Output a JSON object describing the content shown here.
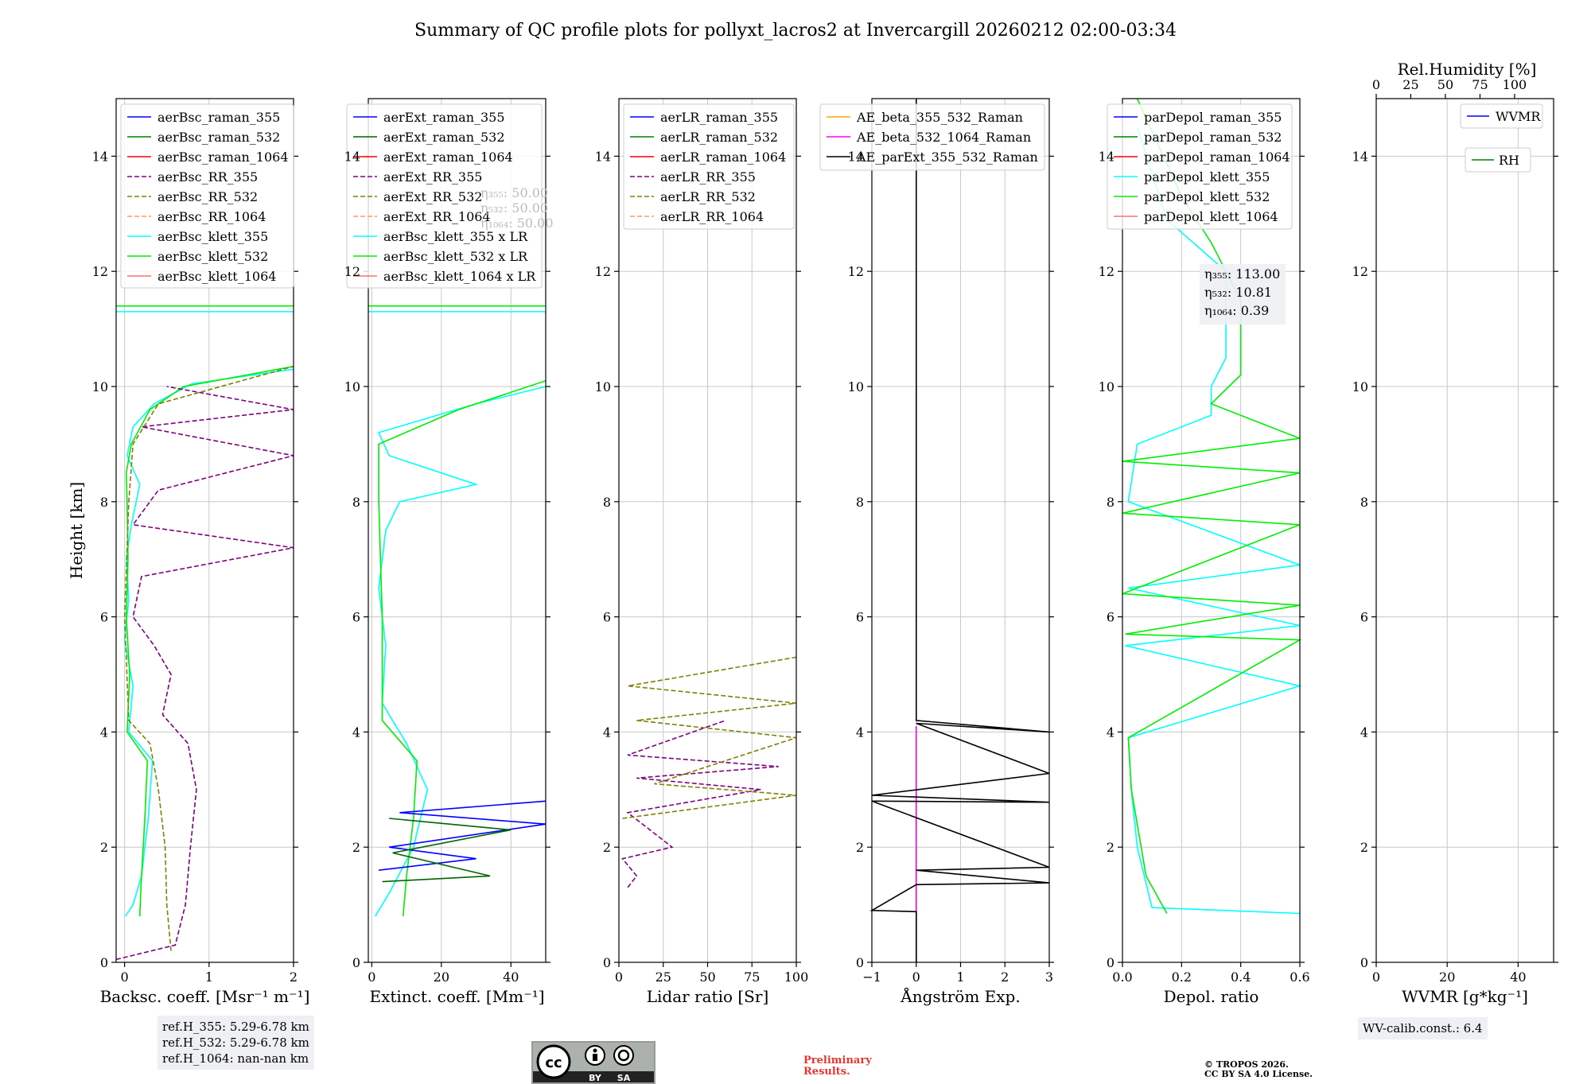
{
  "title": "Summary of QC profile plots for pollyxt_lacros2 at Invercargill 20260212 02:00-03:34",
  "chart_data": {
    "type": "line",
    "shared_y": {
      "label": "Height [km]",
      "lim": [
        0,
        15
      ],
      "ticks": [
        0,
        2,
        4,
        6,
        8,
        10,
        12,
        14
      ]
    },
    "panels": [
      {
        "id": "backscatter",
        "xlabel": "Backsc. coeff. [Msr⁻¹ m⁻¹]",
        "xlim": [
          -0.1,
          2
        ],
        "xticks": [
          0,
          1,
          2
        ],
        "legend": [
          "aerBsc_raman_355",
          "aerBsc_raman_532",
          "aerBsc_raman_1064",
          "aerBsc_RR_355",
          "aerBsc_RR_532",
          "aerBsc_RR_1064",
          "aerBsc_klett_355",
          "aerBsc_klett_532",
          "aerBsc_klett_1064"
        ],
        "series": [
          {
            "name": "aerBsc_klett_355",
            "color": "#00ffff",
            "dash": false,
            "points": [
              [
                0.01,
                0.8
              ],
              [
                0.1,
                1.0
              ],
              [
                0.2,
                1.5
              ],
              [
                0.28,
                2.5
              ],
              [
                0.33,
                3.5
              ],
              [
                0.05,
                4.0
              ],
              [
                0.1,
                4.8
              ],
              [
                0.0,
                5.6
              ],
              [
                0.05,
                6.3
              ],
              [
                0.02,
                7.0
              ],
              [
                0.08,
                7.6
              ],
              [
                0.18,
                8.3
              ],
              [
                0.03,
                8.8
              ],
              [
                0.1,
                9.3
              ],
              [
                0.35,
                9.7
              ],
              [
                0.8,
                10.05
              ],
              [
                2.0,
                10.3
              ]
            ]
          },
          {
            "name": "aerBsc_klett_532",
            "color": "#00ee00",
            "dash": false,
            "points": [
              [
                0.18,
                0.8
              ],
              [
                0.2,
                1.5
              ],
              [
                0.24,
                2.5
              ],
              [
                0.27,
                3.5
              ],
              [
                0.03,
                4.0
              ],
              [
                0.06,
                5.0
              ],
              [
                0.02,
                6.0
              ],
              [
                0.04,
                7.0
              ],
              [
                0.03,
                8.0
              ],
              [
                0.02,
                8.5
              ],
              [
                0.08,
                9.0
              ],
              [
                0.3,
                9.6
              ],
              [
                0.7,
                10.0
              ],
              [
                2.0,
                10.35
              ]
            ]
          },
          {
            "name": "aerBsc_RR_355",
            "color": "#800080",
            "dash": true,
            "points": [
              [
                -0.1,
                0.05
              ],
              [
                0.6,
                0.3
              ],
              [
                0.72,
                1.0
              ],
              [
                0.78,
                2.0
              ],
              [
                0.85,
                3.0
              ],
              [
                0.75,
                3.8
              ],
              [
                0.45,
                4.3
              ],
              [
                0.55,
                5.0
              ],
              [
                0.35,
                5.5
              ],
              [
                0.1,
                6.0
              ],
              [
                0.2,
                6.7
              ],
              [
                2.0,
                7.2
              ],
              [
                0.1,
                7.6
              ],
              [
                0.4,
                8.2
              ],
              [
                2.0,
                8.8
              ],
              [
                0.2,
                9.3
              ],
              [
                2.0,
                9.6
              ],
              [
                0.5,
                10.0
              ]
            ]
          },
          {
            "name": "aerBsc_RR_532",
            "color": "#808000",
            "dash": true,
            "points": [
              [
                0.55,
                0.2
              ],
              [
                0.5,
                1.0
              ],
              [
                0.48,
                2.0
              ],
              [
                0.4,
                3.0
              ],
              [
                0.3,
                3.8
              ],
              [
                0.05,
                4.2
              ],
              [
                0.0,
                6.0
              ],
              [
                0.05,
                8.0
              ],
              [
                0.1,
                9.0
              ],
              [
                0.4,
                9.7
              ],
              [
                2.0,
                10.35
              ]
            ]
          }
        ]
      },
      {
        "id": "extinction",
        "xlabel": "Extinct. coeff. [Mm⁻¹]",
        "xlim": [
          -1,
          50
        ],
        "xticks": [
          0,
          20,
          40
        ],
        "legend": [
          "aerExt_raman_355",
          "aerExt_raman_532",
          "aerExt_raman_1064",
          "aerExt_RR_355",
          "aerExt_RR_532",
          "aerExt_RR_1064",
          "aerBsc_klett_355 x LR",
          "aerBsc_klett_532 x LR",
          "aerBsc_klett_1064 x LR"
        ],
        "series": [
          {
            "name": "aerBsc_klett_355 x LR",
            "color": "#00ffff",
            "dash": false,
            "points": [
              [
                1,
                0.8
              ],
              [
                5,
                1.2
              ],
              [
                12,
                2.0
              ],
              [
                16,
                3.0
              ],
              [
                10,
                3.8
              ],
              [
                3,
                4.5
              ],
              [
                4,
                5.5
              ],
              [
                2,
                6.5
              ],
              [
                4,
                7.5
              ],
              [
                8,
                8.0
              ],
              [
                30,
                8.3
              ],
              [
                5,
                8.8
              ],
              [
                2,
                9.2
              ],
              [
                30,
                9.7
              ],
              [
                50,
                10.0
              ]
            ]
          },
          {
            "name": "aerBsc_klett_532 x LR",
            "color": "#00ee00",
            "dash": false,
            "points": [
              [
                9,
                0.8
              ],
              [
                10,
                1.5
              ],
              [
                12,
                2.5
              ],
              [
                13,
                3.5
              ],
              [
                3,
                4.2
              ],
              [
                3,
                6.0
              ],
              [
                2,
                8.0
              ],
              [
                2,
                9.0
              ],
              [
                25,
                9.6
              ],
              [
                50,
                10.1
              ]
            ]
          },
          {
            "name": "aerExt_raman_355",
            "color": "#0000ff",
            "dash": false,
            "points": [
              [
                2,
                1.6
              ],
              [
                30,
                1.8
              ],
              [
                5,
                2.0
              ],
              [
                50,
                2.4
              ],
              [
                8,
                2.6
              ],
              [
                50,
                2.8
              ]
            ]
          },
          {
            "name": "aerExt_raman_532",
            "color": "#006400",
            "dash": false,
            "points": [
              [
                3,
                1.4
              ],
              [
                34,
                1.5
              ],
              [
                6,
                1.9
              ],
              [
                40,
                2.3
              ],
              [
                5,
                2.5
              ]
            ]
          }
        ]
      },
      {
        "id": "lidar_ratio",
        "xlabel": "Lidar ratio [Sr]",
        "xlim": [
          0,
          100
        ],
        "xticks": [
          0,
          25,
          50,
          75,
          100
        ],
        "legend": [
          "aerLR_raman_355",
          "aerLR_raman_532",
          "aerLR_raman_1064",
          "aerLR_RR_355",
          "aerLR_RR_532",
          "aerLR_RR_1064"
        ],
        "series": [
          {
            "name": "aerLR_RR_355",
            "color": "#800080",
            "dash": true,
            "points": [
              [
                5,
                1.3
              ],
              [
                10,
                1.5
              ],
              [
                2,
                1.8
              ],
              [
                30,
                2.0
              ],
              [
                5,
                2.6
              ],
              [
                80,
                3.0
              ],
              [
                10,
                3.2
              ],
              [
                90,
                3.4
              ],
              [
                5,
                3.6
              ],
              [
                60,
                4.2
              ]
            ]
          },
          {
            "name": "aerLR_RR_532",
            "color": "#808000",
            "dash": true,
            "points": [
              [
                2,
                2.5
              ],
              [
                100,
                2.9
              ],
              [
                20,
                3.1
              ],
              [
                100,
                3.9
              ],
              [
                10,
                4.2
              ],
              [
                100,
                4.5
              ],
              [
                5,
                4.8
              ],
              [
                100,
                5.3
              ]
            ]
          }
        ]
      },
      {
        "id": "angstrom",
        "xlabel": "Ångström Exp.",
        "xlim": [
          -1,
          3
        ],
        "xticks": [
          -1,
          0,
          1,
          2,
          3
        ],
        "legend": [
          "AE_beta_355_532_Raman",
          "AE_beta_532_1064_Raman",
          "AE_parExt_355_532_Raman"
        ],
        "series": [
          {
            "name": "AE_beta_532_1064_Raman",
            "color": "#ff00ff",
            "dash": false,
            "points": [
              [
                0,
                0.0
              ],
              [
                0,
                4.1
              ]
            ]
          },
          {
            "name": "AE_parExt_355_532_Raman",
            "color": "#000000",
            "dash": false,
            "points": [
              [
                0,
                0.0
              ],
              [
                0,
                0.88
              ],
              [
                -1,
                0.9
              ],
              [
                0,
                1.35
              ],
              [
                3,
                1.38
              ],
              [
                0,
                1.6
              ],
              [
                3,
                1.65
              ],
              [
                -1,
                2.8
              ],
              [
                3,
                2.78
              ],
              [
                -1,
                2.9
              ],
              [
                3,
                3.28
              ],
              [
                0,
                4.15
              ],
              [
                3,
                4.0
              ],
              [
                0,
                4.2
              ],
              [
                0,
                15
              ]
            ]
          }
        ]
      },
      {
        "id": "depol",
        "xlabel": "Depol. ratio",
        "xlim": [
          0,
          0.6
        ],
        "xticks": [
          0.0,
          0.2,
          0.4,
          0.6
        ],
        "legend": [
          "parDepol_raman_355",
          "parDepol_raman_532",
          "parDepol_raman_1064",
          "parDepol_klett_355",
          "parDepol_klett_532",
          "parDepol_klett_1064"
        ],
        "series": [
          {
            "name": "parDepol_klett_355",
            "color": "#00ffff",
            "dash": false,
            "points": [
              [
                0.6,
                0.85
              ],
              [
                0.1,
                0.95
              ],
              [
                0.05,
                2.0
              ],
              [
                0.03,
                3.0
              ],
              [
                0.02,
                3.9
              ],
              [
                0.6,
                4.8
              ],
              [
                0.01,
                5.5
              ],
              [
                0.6,
                5.85
              ],
              [
                0.02,
                6.5
              ],
              [
                0.6,
                6.9
              ],
              [
                0.02,
                8.0
              ],
              [
                0.05,
                9.0
              ],
              [
                0.3,
                9.5
              ],
              [
                0.3,
                10.0
              ],
              [
                0.35,
                10.5
              ],
              [
                0.35,
                12.0
              ],
              [
                0.15,
                12.9
              ],
              [
                0.05,
                14.5
              ]
            ]
          },
          {
            "name": "parDepol_klett_532",
            "color": "#00ee00",
            "dash": false,
            "points": [
              [
                0.15,
                0.85
              ],
              [
                0.08,
                1.5
              ],
              [
                0.03,
                3.0
              ],
              [
                0.02,
                3.9
              ],
              [
                0.6,
                5.6
              ],
              [
                0.01,
                5.7
              ],
              [
                0.6,
                6.2
              ],
              [
                0.0,
                6.4
              ],
              [
                0.6,
                7.6
              ],
              [
                0.0,
                7.8
              ],
              [
                0.6,
                8.5
              ],
              [
                0.0,
                8.7
              ],
              [
                0.6,
                9.1
              ],
              [
                0.3,
                9.7
              ],
              [
                0.4,
                10.2
              ],
              [
                0.4,
                11.5
              ],
              [
                0.3,
                12.5
              ],
              [
                0.2,
                13.3
              ],
              [
                0.05,
                15.0
              ]
            ]
          }
        ]
      },
      {
        "id": "wv",
        "xlabel": "WVMR [g*kg⁻¹]",
        "xlim": [
          0,
          50
        ],
        "xticks": [
          0,
          20,
          40
        ],
        "top_xlabel": "Rel.Humidity [%]",
        "top_xticks": [
          0,
          25,
          50,
          75,
          100
        ],
        "legend": [
          "WVMR",
          "RH"
        ],
        "series": []
      }
    ],
    "overlay_lines_km": [
      11.3,
      11.4
    ],
    "depol_annotation": [
      "η₃₅₅: 113.00",
      "η₅₃₂: 10.81",
      "η₁₀₆₄: 0.39"
    ],
    "ext_annotation_faded": [
      "η₃₅₅: 50.00",
      "η₅₃₂: 50.00",
      "η₁₀₆₄: 50.00"
    ]
  },
  "ref_heights": [
    "ref.H_355: 5.29-6.78 km",
    "ref.H_532: 5.29-6.78 km",
    "ref.H_1064: nan-nan km"
  ],
  "wv_calib": "WV-calib.const.: 6.4",
  "cc_badge": {
    "by": "BY",
    "sa": "SA"
  },
  "prelim": [
    "Preliminary",
    "Results."
  ],
  "copyright": [
    "© TROPOS 2026.",
    "CC BY SA 4.0 License."
  ]
}
